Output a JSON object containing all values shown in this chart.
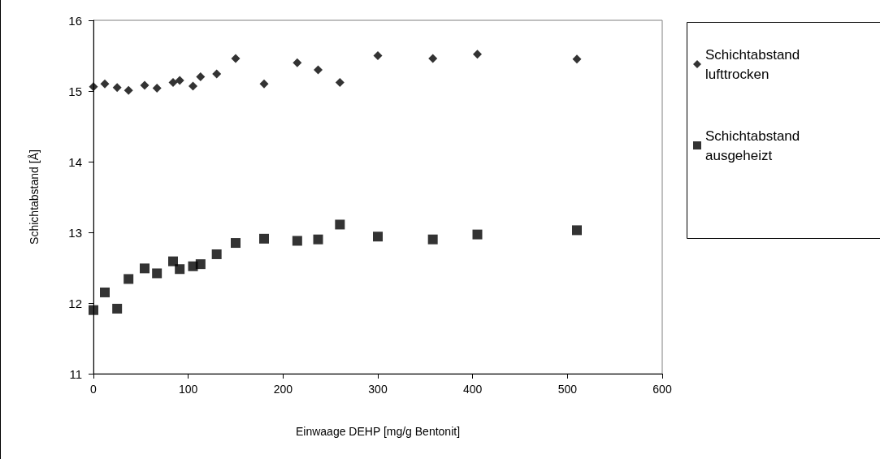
{
  "chart_data": {
    "type": "scatter",
    "xlabel": "Einwaage DEHP [mg/g Bentonit]",
    "ylabel": "Schichtabstand [Å]",
    "xlim": [
      0,
      600
    ],
    "xticks": [
      0,
      100,
      200,
      300,
      400,
      500,
      600
    ],
    "ylim": [
      11,
      16
    ],
    "yticks": [
      11,
      12,
      13,
      14,
      15,
      16
    ],
    "grid": false,
    "legend": "right",
    "series": [
      {
        "name": "Schichtabstand lufttrocken",
        "color": "#000000",
        "marker": "diamond",
        "x": [
          0,
          12,
          25,
          37,
          54,
          67,
          84,
          91,
          105,
          113,
          130,
          150,
          180,
          215,
          237,
          260,
          300,
          358,
          405,
          510
        ],
        "values": [
          15.06,
          15.1,
          15.05,
          15.01,
          15.08,
          15.04,
          15.12,
          15.15,
          15.07,
          15.2,
          15.24,
          15.46,
          15.1,
          15.4,
          15.3,
          15.12,
          15.5,
          15.46,
          15.52,
          15.45
        ]
      },
      {
        "name": "Schichtabstand ausgeheizt",
        "color": "#000000",
        "marker": "square",
        "x": [
          0,
          12,
          25,
          37,
          54,
          67,
          84,
          91,
          105,
          113,
          130,
          150,
          180,
          215,
          237,
          260,
          300,
          358,
          405,
          510
        ],
        "values": [
          11.9,
          12.15,
          11.92,
          12.34,
          12.49,
          12.42,
          12.59,
          12.48,
          12.52,
          12.55,
          12.69,
          12.85,
          12.91,
          12.88,
          12.9,
          13.11,
          12.94,
          12.9,
          12.97,
          13.03
        ]
      }
    ]
  }
}
